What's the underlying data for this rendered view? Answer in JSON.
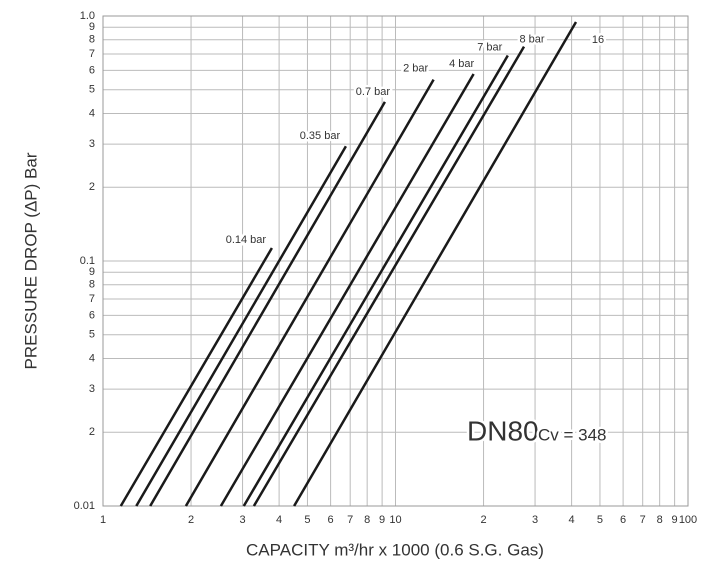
{
  "chart_data": {
    "type": "line",
    "xlabel": "CAPACITY m³/hr x 1000 (0.6 S.G. Gas)",
    "ylabel": "PRESSURE DROP (ΔP) Bar",
    "annotations": [
      "DN80",
      "Cv = 348"
    ],
    "log_x": true,
    "log_y": true,
    "grid": true,
    "xlim": [
      1,
      100
    ],
    "ylim": [
      0.01,
      1.0
    ],
    "xticks": [
      1,
      2,
      3,
      4,
      5,
      6,
      7,
      8,
      9,
      10,
      {
        "value": 20,
        "label": "2"
      },
      {
        "value": 30,
        "label": "3"
      },
      {
        "value": 40,
        "label": "4"
      },
      {
        "value": 50,
        "label": "5"
      },
      {
        "value": 60,
        "label": "6"
      },
      {
        "value": 70,
        "label": "7"
      },
      {
        "value": 80,
        "label": "8"
      },
      {
        "value": 90,
        "label": "9"
      },
      100
    ],
    "yticks": [
      0.01,
      {
        "value": 0.02,
        "label": "2"
      },
      {
        "value": 0.03,
        "label": "3"
      },
      {
        "value": 0.04,
        "label": "4"
      },
      {
        "value": 0.05,
        "label": "5"
      },
      {
        "value": 0.06,
        "label": "6"
      },
      {
        "value": 0.07,
        "label": "7"
      },
      {
        "value": 0.08,
        "label": "8"
      },
      {
        "value": 0.09,
        "label": "9"
      },
      0.1,
      {
        "value": 0.2,
        "label": "2"
      },
      {
        "value": 0.3,
        "label": "3"
      },
      {
        "value": 0.4,
        "label": "4"
      },
      {
        "value": 0.5,
        "label": "5"
      },
      {
        "value": 0.6,
        "label": "6"
      },
      {
        "value": 0.7,
        "label": "7"
      },
      {
        "value": 0.8,
        "label": "8"
      },
      {
        "value": 0.9,
        "label": "9"
      },
      {
        "value": 1.0,
        "label": "1.0"
      }
    ],
    "series": [
      {
        "name": "0.14 bar",
        "color": "#1a1a1a",
        "x": [
          1.15,
          3.78
        ],
        "values": [
          0.01,
          0.113
        ]
      },
      {
        "name": "0.35 bar",
        "color": "#1a1a1a",
        "x": [
          1.3,
          6.77
        ],
        "values": [
          0.01,
          0.294
        ]
      },
      {
        "name": "0.7 bar",
        "color": "#1a1a1a",
        "x": [
          1.45,
          9.2
        ],
        "values": [
          0.01,
          0.446
        ]
      },
      {
        "name": "2 bar",
        "color": "#1a1a1a",
        "x": [
          1.92,
          13.5
        ],
        "values": [
          0.01,
          0.55
        ]
      },
      {
        "name": "4 bar",
        "color": "#1a1a1a",
        "x": [
          2.53,
          18.5
        ],
        "values": [
          0.01,
          0.58
        ]
      },
      {
        "name": "7 bar",
        "color": "#1a1a1a",
        "x": [
          3.03,
          24.2
        ],
        "values": [
          0.01,
          0.69
        ]
      },
      {
        "name": "8 bar",
        "color": "#1a1a1a",
        "x": [
          3.28,
          27.5
        ],
        "values": [
          0.01,
          0.75
        ]
      },
      {
        "name": "16",
        "color": "#1a1a1a",
        "x": [
          4.5,
          41.4
        ],
        "values": [
          0.01,
          0.945
        ]
      }
    ]
  }
}
